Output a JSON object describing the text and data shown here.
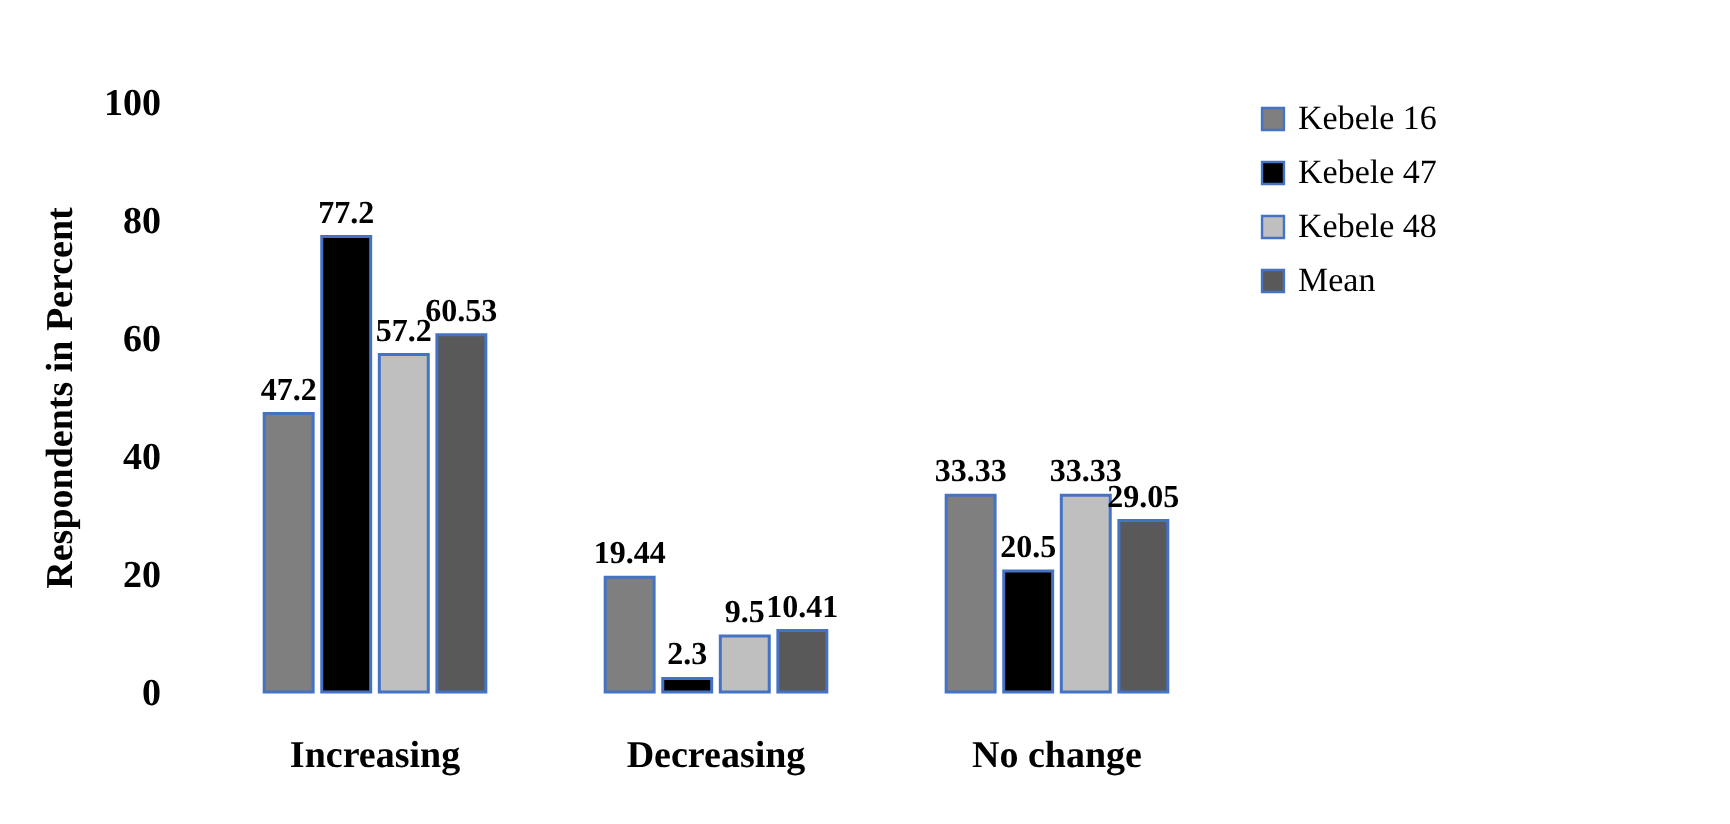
{
  "chart_data": {
    "type": "bar",
    "ylabel": "Respondents in Percent",
    "categories": [
      "Increasing",
      "Decreasing",
      "No change"
    ],
    "series": [
      {
        "name": "Kebele 16",
        "color": "#7f7f7f",
        "values": [
          47.2,
          19.44,
          33.33
        ]
      },
      {
        "name": "Kebele 47",
        "color": "#000000",
        "values": [
          77.2,
          2.3,
          20.5
        ]
      },
      {
        "name": "Kebele 48",
        "color": "#bfbfbf",
        "values": [
          57.2,
          9.5,
          33.33
        ]
      },
      {
        "name": "Mean",
        "color": "#595959",
        "values": [
          60.53,
          10.41,
          29.05
        ]
      }
    ],
    "ylim": [
      0,
      100
    ],
    "yticks": [
      0,
      20,
      40,
      60,
      80,
      100
    ],
    "grid": false,
    "legend": "right",
    "data_labels": true
  }
}
